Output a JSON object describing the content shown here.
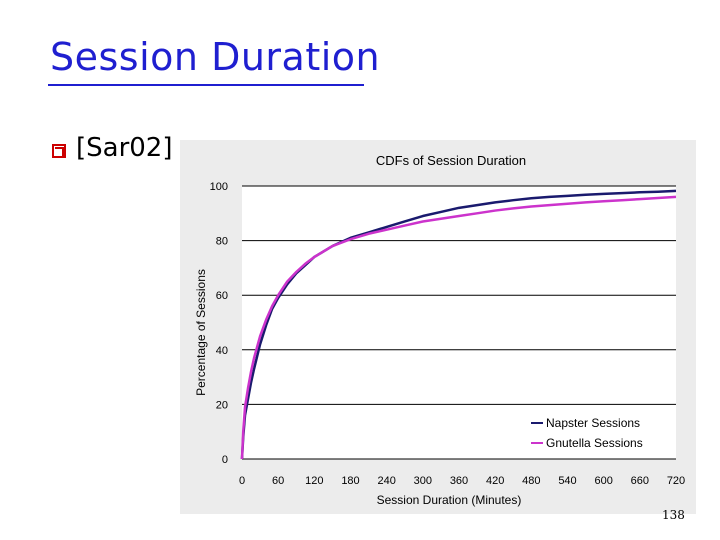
{
  "slide": {
    "title": "Session Duration",
    "bullet": "[Sar02]",
    "page_number": "138",
    "accent_color": "#1f1fd0",
    "bullet_color": "#cc0000",
    "bullet_icon": "checkbox-bullet-icon"
  },
  "chart_data": {
    "type": "line",
    "title": "CDFs of Session Duration",
    "xlabel": "Session Duration (Minutes)",
    "ylabel": "Percentage of Sessions",
    "xlim": [
      0,
      720
    ],
    "ylim": [
      0,
      100
    ],
    "x_ticks": [
      0,
      60,
      120,
      180,
      240,
      300,
      360,
      420,
      480,
      540,
      600,
      660,
      720
    ],
    "y_ticks": [
      0,
      20,
      40,
      60,
      80,
      100
    ],
    "grid": "horizontal",
    "legend_position": "bottom-right",
    "series": [
      {
        "name": "Napster Sessions",
        "color": "#1a1a6e",
        "x": [
          0,
          2,
          5,
          10,
          15,
          20,
          30,
          40,
          50,
          60,
          75,
          90,
          105,
          120,
          150,
          180,
          210,
          240,
          270,
          300,
          330,
          360,
          390,
          420,
          450,
          480,
          510,
          540,
          570,
          600,
          630,
          660,
          690,
          720
        ],
        "y": [
          0,
          8,
          16,
          22,
          28,
          33,
          42,
          49,
          55,
          59,
          64,
          68,
          71,
          74,
          78,
          81,
          83,
          85,
          87,
          89,
          90.5,
          92,
          93,
          94,
          94.8,
          95.5,
          96,
          96.4,
          96.8,
          97.1,
          97.4,
          97.7,
          97.9,
          98.2
        ]
      },
      {
        "name": "Gnutella Sessions",
        "color": "#cc33cc",
        "x": [
          0,
          2,
          5,
          10,
          15,
          20,
          30,
          40,
          50,
          60,
          75,
          90,
          105,
          120,
          150,
          180,
          210,
          240,
          270,
          300,
          330,
          360,
          390,
          420,
          450,
          480,
          510,
          540,
          570,
          600,
          630,
          660,
          690,
          720
        ],
        "y": [
          0,
          10,
          19,
          26,
          32,
          37,
          45,
          51,
          56,
          60,
          65,
          68.5,
          71.5,
          74,
          78,
          80.5,
          82.5,
          84,
          85.5,
          87,
          88,
          89,
          90,
          91,
          91.8,
          92.5,
          93,
          93.5,
          94,
          94.4,
          94.8,
          95.2,
          95.6,
          96
        ]
      }
    ]
  }
}
